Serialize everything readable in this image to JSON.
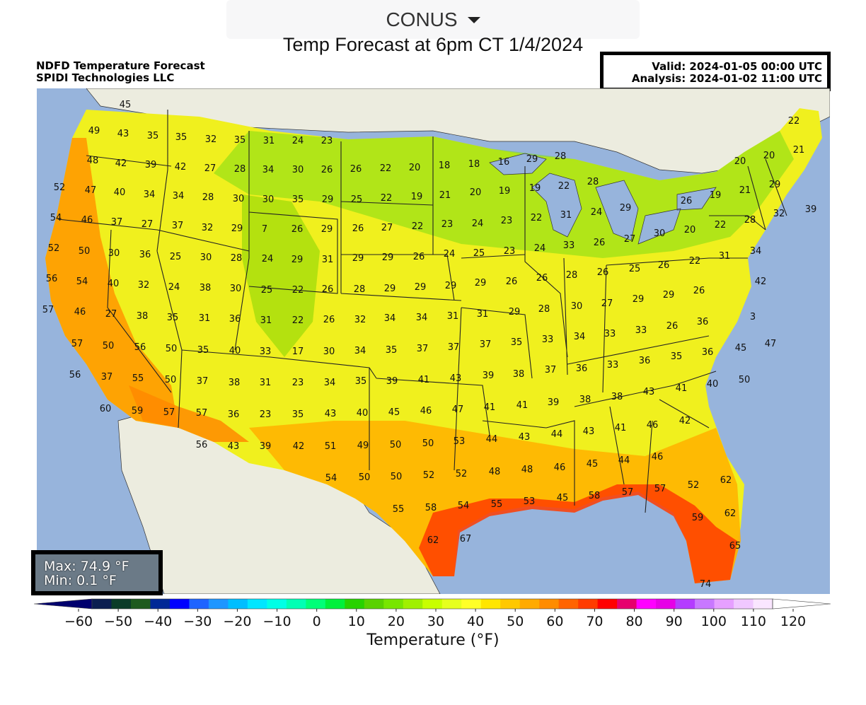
{
  "region_select": {
    "value": "CONUS",
    "icon": "caret-down-icon"
  },
  "page_title": "Temp Forecast at 6pm CT 1/4/2024",
  "header": {
    "product": "NDFD Temperature Forecast",
    "company": "SPIDI Technologies LLC",
    "valid": "Valid: 2024-01-05 00:00 UTC",
    "analysis": "Analysis: 2024-01-02 11:00 UTC"
  },
  "stats": {
    "max": "Max: 74.9 °F",
    "min": "Min: 0.1 °F"
  },
  "colorbar": {
    "label": "Temperature (°F)",
    "ticks": [
      "−60",
      "−50",
      "−40",
      "−30",
      "−20",
      "−10",
      "0",
      "10",
      "20",
      "30",
      "40",
      "50",
      "60",
      "70",
      "80",
      "90",
      "100",
      "110",
      "120"
    ],
    "colors": [
      "#00006e",
      "#0a1e50",
      "#0a3c28",
      "#1e5a1e",
      "#002896",
      "#0000ff",
      "#1e64ff",
      "#1e96ff",
      "#00beff",
      "#00e6ff",
      "#00ffe6",
      "#00ffb4",
      "#00ff78",
      "#00f03c",
      "#28d200",
      "#5ad200",
      "#78e600",
      "#a0f000",
      "#c8ff00",
      "#e6ff1e",
      "#ffff28",
      "#ffe600",
      "#ffc800",
      "#ffaa00",
      "#ff8c00",
      "#ff6400",
      "#ff3c00",
      "#ff0000",
      "#e6006e",
      "#ff00ff",
      "#e600e6",
      "#b43cff",
      "#c878ff",
      "#e6a0ff",
      "#f0c8ff",
      "#fae6ff",
      "#ffffff"
    ]
  },
  "map": {
    "labels": [
      [
        "45",
        177,
        147
      ],
      [
        "49",
        133,
        184
      ],
      [
        "43",
        174,
        188
      ],
      [
        "35",
        216,
        191
      ],
      [
        "35",
        256,
        193
      ],
      [
        "32",
        298,
        196
      ],
      [
        "35",
        339,
        197
      ],
      [
        "31",
        380,
        198
      ],
      [
        "24",
        421,
        198
      ],
      [
        "23",
        462,
        198
      ],
      [
        "48",
        131,
        226
      ],
      [
        "42",
        171,
        230
      ],
      [
        "39",
        213,
        232
      ],
      [
        "42",
        255,
        235
      ],
      [
        "27",
        297,
        237
      ],
      [
        "28",
        339,
        238
      ],
      [
        "34",
        379,
        239
      ],
      [
        "30",
        421,
        239
      ],
      [
        "26",
        462,
        239
      ],
      [
        "26",
        503,
        238
      ],
      [
        "22",
        545,
        237
      ],
      [
        "20",
        586,
        236
      ],
      [
        "18",
        628,
        233
      ],
      [
        "18",
        670,
        231
      ],
      [
        "16",
        712,
        228
      ],
      [
        "29",
        752,
        224
      ],
      [
        "28",
        792,
        220
      ],
      [
        "22",
        1122,
        170
      ],
      [
        "20",
        1046,
        227
      ],
      [
        "20",
        1087,
        219
      ],
      [
        "21",
        1129,
        211
      ],
      [
        "52",
        84,
        264
      ],
      [
        "47",
        128,
        268
      ],
      [
        "40",
        169,
        271
      ],
      [
        "34",
        211,
        274
      ],
      [
        "34",
        252,
        276
      ],
      [
        "28",
        294,
        278
      ],
      [
        "30",
        337,
        280
      ],
      [
        "30",
        379,
        281
      ],
      [
        "35",
        421,
        281
      ],
      [
        "29",
        463,
        281
      ],
      [
        "25",
        504,
        281
      ],
      [
        "22",
        546,
        279
      ],
      [
        "19",
        589,
        277
      ],
      [
        "21",
        629,
        275
      ],
      [
        "20",
        672,
        271
      ],
      [
        "19",
        713,
        269
      ],
      [
        "19",
        756,
        265
      ],
      [
        "22",
        797,
        262
      ],
      [
        "28",
        838,
        256
      ],
      [
        "26",
        970,
        283
      ],
      [
        "19",
        1011,
        275
      ],
      [
        "21",
        1053,
        268
      ],
      [
        "29",
        1095,
        260
      ],
      [
        "54",
        79,
        307
      ],
      [
        "46",
        123,
        310
      ],
      [
        "37",
        165,
        313
      ],
      [
        "27",
        208,
        316
      ],
      [
        "37",
        251,
        318
      ],
      [
        "32",
        293,
        321
      ],
      [
        "29",
        335,
        322
      ],
      [
        "7",
        374,
        323
      ],
      [
        "26",
        420,
        323
      ],
      [
        "29",
        462,
        323
      ],
      [
        "26",
        506,
        322
      ],
      [
        "27",
        547,
        321
      ],
      [
        "22",
        590,
        319
      ],
      [
        "23",
        632,
        316
      ],
      [
        "24",
        675,
        315
      ],
      [
        "23",
        716,
        311
      ],
      [
        "22",
        758,
        307
      ],
      [
        "31",
        800,
        303
      ],
      [
        "24",
        843,
        299
      ],
      [
        "29",
        884,
        293
      ],
      [
        "39",
        1146,
        295
      ],
      [
        "32",
        1101,
        301
      ],
      [
        "28",
        1060,
        310
      ],
      [
        "22",
        1018,
        317
      ],
      [
        "20",
        975,
        324
      ],
      [
        "30",
        932,
        329
      ],
      [
        "52",
        76,
        350
      ],
      [
        "50",
        119,
        354
      ],
      [
        "30",
        161,
        357
      ],
      [
        "36",
        205,
        359
      ],
      [
        "25",
        248,
        362
      ],
      [
        "30",
        291,
        363
      ],
      [
        "28",
        334,
        364
      ],
      [
        "24",
        378,
        365
      ],
      [
        "29",
        420,
        366
      ],
      [
        "31",
        463,
        366
      ],
      [
        "29",
        506,
        364
      ],
      [
        "29",
        548,
        363
      ],
      [
        "26",
        592,
        362
      ],
      [
        "24",
        635,
        358
      ],
      [
        "25",
        677,
        357
      ],
      [
        "23",
        720,
        354
      ],
      [
        "24",
        763,
        350
      ],
      [
        "33",
        804,
        346
      ],
      [
        "26",
        847,
        342
      ],
      [
        "27",
        890,
        337
      ],
      [
        "34",
        1068,
        354
      ],
      [
        "31",
        1024,
        361
      ],
      [
        "22",
        982,
        368
      ],
      [
        "26",
        938,
        374
      ],
      [
        "25",
        897,
        379
      ],
      [
        "56",
        73,
        393
      ],
      [
        "54",
        116,
        397
      ],
      [
        "40",
        160,
        400
      ],
      [
        "32",
        203,
        402
      ],
      [
        "24",
        246,
        405
      ],
      [
        "38",
        290,
        406
      ],
      [
        "30",
        333,
        407
      ],
      [
        "25",
        377,
        409
      ],
      [
        "22",
        421,
        409
      ],
      [
        "26",
        463,
        408
      ],
      [
        "28",
        508,
        408
      ],
      [
        "29",
        551,
        407
      ],
      [
        "29",
        594,
        405
      ],
      [
        "29",
        637,
        403
      ],
      [
        "29",
        679,
        399
      ],
      [
        "26",
        723,
        397
      ],
      [
        "26",
        766,
        392
      ],
      [
        "28",
        808,
        388
      ],
      [
        "26",
        852,
        384
      ],
      [
        "42",
        1075,
        397
      ],
      [
        "26",
        988,
        410
      ],
      [
        "29",
        945,
        416
      ],
      [
        "29",
        902,
        422
      ],
      [
        "27",
        858,
        428
      ],
      [
        "30",
        815,
        432
      ],
      [
        "57",
        68,
        437
      ],
      [
        "46",
        113,
        440
      ],
      [
        "27",
        157,
        443
      ],
      [
        "38",
        201,
        446
      ],
      [
        "35",
        244,
        448
      ],
      [
        "31",
        289,
        449
      ],
      [
        "36",
        332,
        450
      ],
      [
        "31",
        376,
        452
      ],
      [
        "22",
        421,
        452
      ],
      [
        "26",
        465,
        451
      ],
      [
        "32",
        509,
        451
      ],
      [
        "34",
        551,
        449
      ],
      [
        "34",
        596,
        448
      ],
      [
        "31",
        640,
        446
      ],
      [
        "31",
        682,
        443
      ],
      [
        "29",
        727,
        440
      ],
      [
        "28",
        769,
        436
      ],
      [
        "36",
        993,
        454
      ],
      [
        "26",
        950,
        460
      ],
      [
        "33",
        906,
        466
      ],
      [
        "33",
        862,
        471
      ],
      [
        "34",
        819,
        475
      ],
      [
        "33",
        774,
        479
      ],
      [
        "3",
        1064,
        447
      ],
      [
        "57",
        109,
        485
      ],
      [
        "50",
        153,
        488
      ],
      [
        "56",
        198,
        490
      ],
      [
        "50",
        242,
        492
      ],
      [
        "35",
        287,
        494
      ],
      [
        "40",
        332,
        495
      ],
      [
        "33",
        375,
        496
      ],
      [
        "17",
        421,
        496
      ],
      [
        "30",
        465,
        496
      ],
      [
        "34",
        509,
        495
      ],
      [
        "35",
        553,
        494
      ],
      [
        "37",
        597,
        492
      ],
      [
        "37",
        641,
        490
      ],
      [
        "37",
        686,
        486
      ],
      [
        "35",
        730,
        483
      ],
      [
        "47",
        1089,
        485
      ],
      [
        "45",
        1047,
        491
      ],
      [
        "36",
        1000,
        497
      ],
      [
        "35",
        956,
        503
      ],
      [
        "36",
        911,
        509
      ],
      [
        "33",
        866,
        515
      ],
      [
        "36",
        822,
        520
      ],
      [
        "37",
        778,
        522
      ],
      [
        "38",
        733,
        528
      ],
      [
        "39",
        690,
        530
      ],
      [
        "56",
        106,
        529
      ],
      [
        "37",
        151,
        532
      ],
      [
        "55",
        195,
        534
      ],
      [
        "50",
        241,
        536
      ],
      [
        "37",
        286,
        538
      ],
      [
        "38",
        331,
        540
      ],
      [
        "31",
        375,
        540
      ],
      [
        "23",
        421,
        540
      ],
      [
        "34",
        466,
        540
      ],
      [
        "35",
        510,
        538
      ],
      [
        "39",
        554,
        538
      ],
      [
        "41",
        599,
        536
      ],
      [
        "43",
        644,
        534
      ],
      [
        "50",
        1052,
        536
      ],
      [
        "40",
        1007,
        542
      ],
      [
        "41",
        963,
        548
      ],
      [
        "43",
        917,
        553
      ],
      [
        "38",
        872,
        560
      ],
      [
        "38",
        827,
        564
      ],
      [
        "39",
        782,
        568
      ],
      [
        "41",
        738,
        572
      ],
      [
        "41",
        692,
        575
      ],
      [
        "60",
        149,
        577
      ],
      [
        "59",
        194,
        580
      ],
      [
        "57",
        239,
        582
      ],
      [
        "57",
        285,
        583
      ],
      [
        "36",
        330,
        585
      ],
      [
        "23",
        375,
        585
      ],
      [
        "35",
        421,
        585
      ],
      [
        "43",
        467,
        584
      ],
      [
        "40",
        512,
        583
      ],
      [
        "45",
        557,
        582
      ],
      [
        "46",
        602,
        580
      ],
      [
        "47",
        647,
        578
      ],
      [
        "42",
        968,
        594
      ],
      [
        "46",
        922,
        600
      ],
      [
        "41",
        877,
        604
      ],
      [
        "43",
        832,
        609
      ],
      [
        "44",
        787,
        613
      ],
      [
        "43",
        741,
        617
      ],
      [
        "44",
        695,
        620
      ],
      [
        "56",
        285,
        628
      ],
      [
        "43",
        330,
        630
      ],
      [
        "39",
        375,
        630
      ],
      [
        "42",
        422,
        630
      ],
      [
        "51",
        467,
        630
      ],
      [
        "49",
        513,
        629
      ],
      [
        "50",
        559,
        628
      ],
      [
        "50",
        605,
        626
      ],
      [
        "53",
        649,
        623
      ],
      [
        "46",
        929,
        645
      ],
      [
        "44",
        882,
        650
      ],
      [
        "45",
        837,
        655
      ],
      [
        "46",
        791,
        660
      ],
      [
        "48",
        745,
        663
      ],
      [
        "48",
        699,
        666
      ],
      [
        "54",
        468,
        675
      ],
      [
        "50",
        515,
        674
      ],
      [
        "50",
        560,
        673
      ],
      [
        "52",
        606,
        671
      ],
      [
        "52",
        652,
        669
      ],
      [
        "62",
        1026,
        678
      ],
      [
        "52",
        980,
        685
      ],
      [
        "57",
        933,
        690
      ],
      [
        "57",
        887,
        695
      ],
      [
        "58",
        840,
        700
      ],
      [
        "45",
        795,
        703
      ],
      [
        "53",
        748,
        708
      ],
      [
        "55",
        702,
        712
      ],
      [
        "54",
        655,
        714
      ],
      [
        "58",
        609,
        717
      ],
      [
        "55",
        563,
        719
      ],
      [
        "62",
        1032,
        725
      ],
      [
        "59",
        986,
        731
      ],
      [
        "62",
        612,
        763
      ],
      [
        "67",
        658,
        761
      ],
      [
        "65",
        1039,
        771
      ],
      [
        "74",
        997,
        825
      ]
    ]
  }
}
